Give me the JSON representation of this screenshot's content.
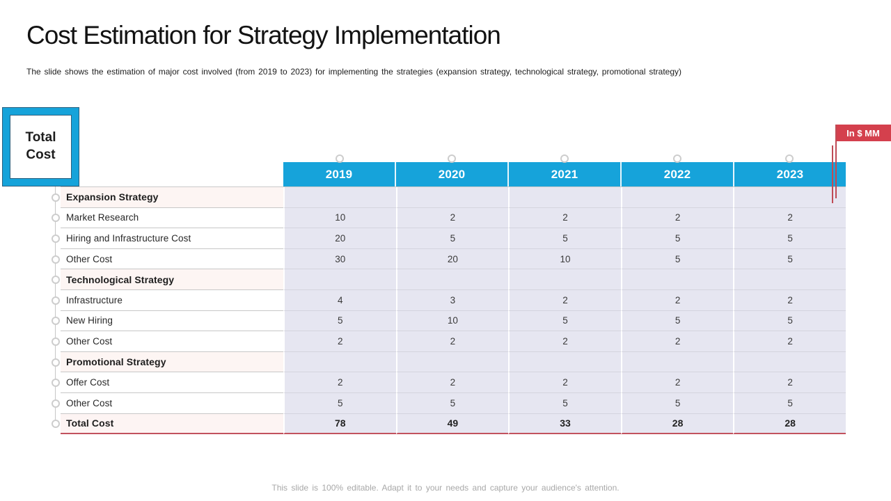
{
  "slide": {
    "title": "Cost Estimation for Strategy Implementation",
    "subtitle": "The slide shows the estimation of major cost involved (from 2019 to 2023) for implementing the strategies (expansion strategy, technological strategy, promotional strategy)",
    "footer_note": "This slide is 100% editable. Adapt it to your needs and capture your audience's attention."
  },
  "callout": {
    "label": "Total Cost"
  },
  "units_badge": {
    "label": "In $ MM"
  },
  "colors": {
    "header_blue": "#16a3da",
    "cell_lavender": "#e6e6f1",
    "section_pink": "#fdf5f3",
    "accent_red": "#bf4b55",
    "badge_red": "#d4404d"
  },
  "table": {
    "columns": [
      "2019",
      "2020",
      "2021",
      "2022",
      "2023"
    ],
    "rows": [
      {
        "label": "Expansion Strategy",
        "type": "section",
        "values": [
          "",
          "",
          "",
          "",
          ""
        ]
      },
      {
        "label": "Market Research",
        "type": "item",
        "values": [
          "10",
          "2",
          "2",
          "2",
          "2"
        ]
      },
      {
        "label": "Hiring and Infrastructure Cost",
        "type": "item",
        "values": [
          "20",
          "5",
          "5",
          "5",
          "5"
        ]
      },
      {
        "label": "Other Cost",
        "type": "item",
        "values": [
          "30",
          "20",
          "10",
          "5",
          "5"
        ]
      },
      {
        "label": "Technological Strategy",
        "type": "section",
        "values": [
          "",
          "",
          "",
          "",
          ""
        ]
      },
      {
        "label": "Infrastructure",
        "type": "item",
        "values": [
          "4",
          "3",
          "2",
          "2",
          "2"
        ]
      },
      {
        "label": "New Hiring",
        "type": "item",
        "values": [
          "5",
          "10",
          "5",
          "5",
          "5"
        ]
      },
      {
        "label": "Other Cost",
        "type": "item",
        "values": [
          "2",
          "2",
          "2",
          "2",
          "2"
        ]
      },
      {
        "label": "Promotional Strategy",
        "type": "section",
        "values": [
          "",
          "",
          "",
          "",
          ""
        ]
      },
      {
        "label": "Offer Cost",
        "type": "item",
        "values": [
          "2",
          "2",
          "2",
          "2",
          "2"
        ]
      },
      {
        "label": "Other Cost",
        "type": "item",
        "values": [
          "5",
          "5",
          "5",
          "5",
          "5"
        ]
      },
      {
        "label": "Total Cost",
        "type": "total",
        "values": [
          "78",
          "49",
          "33",
          "28",
          "28"
        ]
      }
    ]
  }
}
